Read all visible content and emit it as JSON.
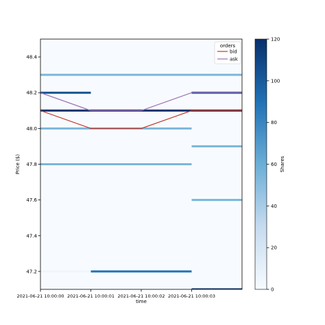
{
  "chart_data": {
    "type": "heatmap",
    "xlabel": "time",
    "ylabel": "Price ($)",
    "x_ticks": [
      "2021-06-21 10:00:00",
      "2021-06-21 10:00:01",
      "2021-06-21 10:00:02",
      "2021-06-21 10:00:03"
    ],
    "xlim": [
      0,
      4
    ],
    "ylim": [
      47.1,
      48.5
    ],
    "y_ticks": [
      47.2,
      47.4,
      47.6,
      47.8,
      48.0,
      48.2,
      48.4
    ],
    "colorbar": {
      "label": "Shares",
      "range": [
        0,
        120
      ],
      "ticks": [
        0,
        20,
        40,
        60,
        80,
        100,
        120
      ],
      "colors": [
        "#f7fbff",
        "#c6dbef",
        "#6baed6",
        "#2171b5",
        "#08306b"
      ]
    },
    "depth_levels": [
      {
        "price": 48.3,
        "start": 0,
        "end": 4,
        "shares": 55
      },
      {
        "price": 48.2,
        "start": 0,
        "end": 1,
        "shares": 105
      },
      {
        "price": 48.2,
        "start": 3,
        "end": 4,
        "shares": 105
      },
      {
        "price": 48.1,
        "start": 0,
        "end": 4,
        "shares": 120
      },
      {
        "price": 48.0,
        "start": 0,
        "end": 3,
        "shares": 55
      },
      {
        "price": 47.9,
        "start": 3,
        "end": 4,
        "shares": 55
      },
      {
        "price": 47.8,
        "start": 0,
        "end": 3,
        "shares": 55
      },
      {
        "price": 47.6,
        "start": 3,
        "end": 4,
        "shares": 55
      },
      {
        "price": 47.2,
        "start": 0,
        "end": 1,
        "shares": 5
      },
      {
        "price": 47.2,
        "start": 1,
        "end": 3,
        "shares": 90
      },
      {
        "price": 47.1,
        "start": 3,
        "end": 4,
        "shares": 120
      }
    ],
    "legend": {
      "title": "orders",
      "position": "top-right",
      "entries": [
        {
          "name": "bid",
          "color": "#c0392b"
        },
        {
          "name": "ask",
          "color": "#9b6fb4"
        }
      ]
    },
    "series": [
      {
        "name": "bid",
        "color": "#c0392b",
        "points": [
          [
            0,
            48.1
          ],
          [
            1,
            48.0
          ],
          [
            2,
            48.0
          ],
          [
            3,
            48.1
          ],
          [
            4,
            48.1
          ]
        ]
      },
      {
        "name": "ask",
        "color": "#9b6fb4",
        "points": [
          [
            0,
            48.2
          ],
          [
            1,
            48.1
          ],
          [
            2,
            48.1
          ],
          [
            3,
            48.2
          ],
          [
            4,
            48.2
          ]
        ]
      }
    ]
  }
}
